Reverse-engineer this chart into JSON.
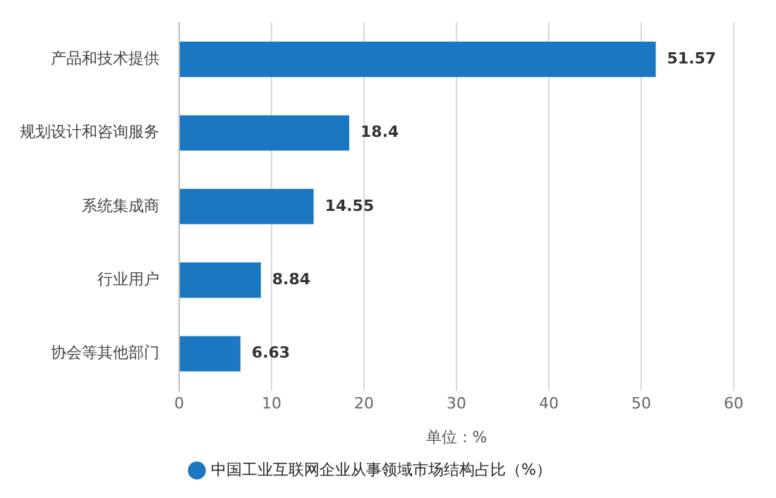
{
  "chart_data": {
    "type": "bar",
    "orientation": "horizontal",
    "categories": [
      "产品和技术提供",
      "规划设计和咨询服务",
      "系统集成商",
      "行业用户",
      "协会等其他部门"
    ],
    "series": [
      {
        "name": "中国工业互联网企业从事领域市场结构占比（%）",
        "color": "#1a78c2",
        "values": [
          51.57,
          18.4,
          14.55,
          8.84,
          6.63
        ]
      }
    ],
    "xlim": [
      0,
      60
    ],
    "xticks": [
      0,
      10,
      20,
      30,
      40,
      50,
      60
    ],
    "grid": "x",
    "legend": "bottom",
    "data_labels": true,
    "annotations": [
      "单位：%"
    ]
  }
}
